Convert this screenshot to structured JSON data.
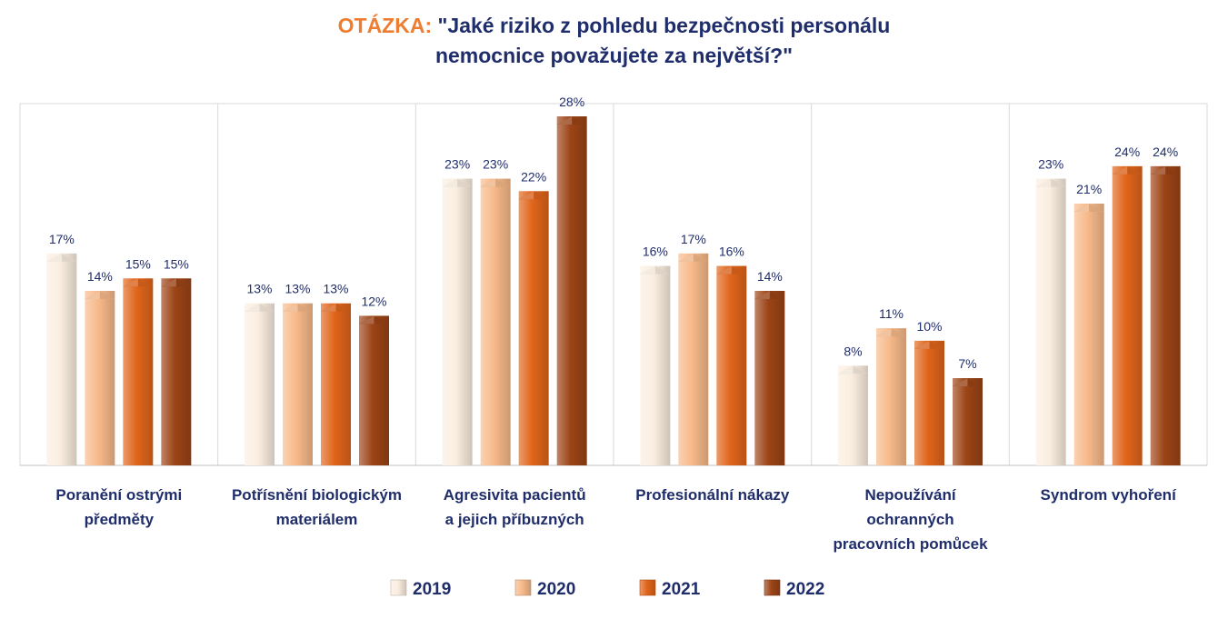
{
  "chart_data": {
    "type": "bar",
    "title_prefix": "OTÁZKA:",
    "title_lines": [
      "\"Jaké riziko z pohledu bezpečnosti personálu",
      "nemocnice považujete za největší?\""
    ],
    "categories": [
      [
        "Poranění ostrými",
        "předměty"
      ],
      [
        "Potřísnění biologickým",
        "materiálem"
      ],
      [
        "Agresivita pacientů",
        "a jejich příbuzných"
      ],
      [
        "Profesionální nákazy"
      ],
      [
        "Nepoužívání",
        "ochranných",
        "pracovních pomůcek"
      ],
      [
        "Syndrom vyhoření"
      ]
    ],
    "series": [
      {
        "name": "2019",
        "values": [
          17,
          13,
          23,
          16,
          8,
          23
        ],
        "labels": [
          "17%",
          "13%",
          "23%",
          "16%",
          "8%",
          "23%"
        ],
        "color": "#fbeee0"
      },
      {
        "name": "2020",
        "values": [
          14,
          13,
          23,
          17,
          11,
          21
        ],
        "labels": [
          "14%",
          "13%",
          "23%",
          "17%",
          "11%",
          "21%"
        ],
        "color": "#f7b98a"
      },
      {
        "name": "2021",
        "values": [
          15,
          13,
          22,
          16,
          10,
          24
        ],
        "labels": [
          "15%",
          "13%",
          "22%",
          "16%",
          "10%",
          "24%"
        ],
        "color": "#e0651b"
      },
      {
        "name": "2022",
        "values": [
          15,
          12,
          28,
          14,
          7,
          24
        ],
        "labels": [
          "15%",
          "12%",
          "28%",
          "14%",
          "7%",
          "24%"
        ],
        "color": "#9c4416"
      }
    ],
    "ylim": [
      0,
      30
    ],
    "grid": "vertical separators between categories",
    "legend_position": "bottom"
  }
}
